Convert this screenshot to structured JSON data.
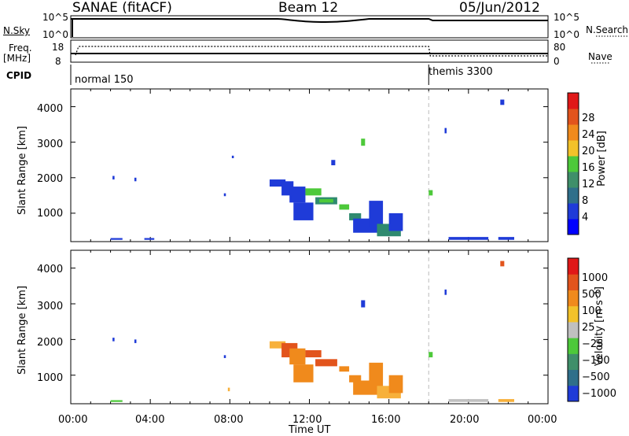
{
  "header": {
    "title": "SANAE (fitACF)",
    "beam": "Beam 12",
    "date": "05/Jun/2012"
  },
  "status_panel": {
    "left_labels": {
      "nsky": "N.Sky",
      "freq": "Freq.",
      "freq_unit": "[MHz]",
      "cpid": "CPID"
    },
    "right_labels": {
      "nsearch": "N.Search",
      "nave": "Nave"
    },
    "nsky_ticks": [
      "10^5",
      "10^0"
    ],
    "nsearch_ticks": [
      "10^5",
      "10^0"
    ],
    "freq_ticks": [
      "18",
      "8"
    ],
    "nave_ticks": [
      "80",
      "0"
    ],
    "cpid_segments": [
      {
        "label": "normal 150",
        "start_hour": 0.0
      },
      {
        "label": "themis 3300",
        "start_hour": 18.0
      }
    ]
  },
  "colors": {
    "blue": "#1f3bd8",
    "green": "#4dc93a",
    "teal": "#2f8a6f",
    "orange": "#f08a1c",
    "red_orange": "#e2541c",
    "light_orange": "#f7b03a",
    "gray": "#c0c0c0"
  },
  "chart_data": [
    {
      "type": "heatmap",
      "panel": "power",
      "ylabel": "Slant Range [km]",
      "yticks": [
        "1000",
        "2000",
        "3000",
        "4000"
      ],
      "ylim": [
        200,
        4500
      ],
      "xlim": [
        0,
        24
      ],
      "colorbar": {
        "label": "Power [dB]",
        "ticks": [
          "4",
          "8",
          "12",
          "16",
          "20",
          "24",
          "28"
        ],
        "colors": [
          "#0000ff",
          "#1f3bd8",
          "#2f6f8a",
          "#3f8f6a",
          "#4dc93a",
          "#f2c22a",
          "#f08a1c",
          "#e2541c",
          "#e01818"
        ]
      },
      "scatter_blocks": [
        {
          "t0": 2.1,
          "t1": 2.2,
          "r0": 1950,
          "r1": 2050,
          "c": "blue"
        },
        {
          "t0": 3.2,
          "t1": 3.3,
          "r0": 1900,
          "r1": 2000,
          "c": "blue"
        },
        {
          "t0": 7.7,
          "t1": 7.8,
          "r0": 1480,
          "r1": 1560,
          "c": "blue"
        },
        {
          "t0": 8.1,
          "t1": 8.2,
          "r0": 2550,
          "r1": 2620,
          "c": "blue"
        },
        {
          "t0": 10.0,
          "t1": 10.8,
          "r0": 1750,
          "r1": 1950,
          "c": "blue"
        },
        {
          "t0": 10.6,
          "t1": 11.2,
          "r0": 1500,
          "r1": 1900,
          "c": "blue"
        },
        {
          "t0": 11.0,
          "t1": 11.8,
          "r0": 1300,
          "r1": 1750,
          "c": "blue"
        },
        {
          "t0": 11.2,
          "t1": 12.2,
          "r0": 800,
          "r1": 1300,
          "c": "blue"
        },
        {
          "t0": 11.8,
          "t1": 12.6,
          "r0": 1500,
          "r1": 1700,
          "c": "green"
        },
        {
          "t0": 12.3,
          "t1": 13.4,
          "r0": 1250,
          "r1": 1450,
          "c": "teal"
        },
        {
          "t0": 12.5,
          "t1": 13.2,
          "r0": 1300,
          "r1": 1400,
          "c": "green"
        },
        {
          "t0": 13.1,
          "t1": 13.3,
          "r0": 2350,
          "r1": 2500,
          "c": "blue"
        },
        {
          "t0": 13.5,
          "t1": 14.0,
          "r0": 1100,
          "r1": 1250,
          "c": "green"
        },
        {
          "t0": 14.0,
          "t1": 14.6,
          "r0": 800,
          "r1": 1000,
          "c": "teal"
        },
        {
          "t0": 14.6,
          "t1": 14.8,
          "r0": 2900,
          "r1": 3100,
          "c": "green"
        },
        {
          "t0": 14.2,
          "t1": 15.4,
          "r0": 450,
          "r1": 850,
          "c": "blue"
        },
        {
          "t0": 15.0,
          "t1": 15.7,
          "r0": 600,
          "r1": 1350,
          "c": "blue"
        },
        {
          "t0": 15.4,
          "t1": 16.6,
          "r0": 350,
          "r1": 700,
          "c": "teal"
        },
        {
          "t0": 16.0,
          "t1": 16.7,
          "r0": 500,
          "r1": 1000,
          "c": "blue"
        },
        {
          "t0": 18.0,
          "t1": 18.2,
          "r0": 1500,
          "r1": 1650,
          "c": "green"
        },
        {
          "t0": 19.0,
          "t1": 21.0,
          "r0": 250,
          "r1": 330,
          "c": "blue"
        },
        {
          "t0": 21.5,
          "t1": 22.3,
          "r0": 250,
          "r1": 330,
          "c": "blue"
        },
        {
          "t0": 2.0,
          "t1": 2.6,
          "r0": 250,
          "r1": 300,
          "c": "blue"
        },
        {
          "t0": 3.7,
          "t1": 4.2,
          "r0": 250,
          "r1": 300,
          "c": "blue"
        },
        {
          "t0": 21.6,
          "t1": 21.8,
          "r0": 4050,
          "r1": 4200,
          "c": "blue"
        },
        {
          "t0": 18.8,
          "t1": 18.9,
          "r0": 3250,
          "r1": 3400,
          "c": "blue"
        }
      ]
    },
    {
      "type": "heatmap",
      "panel": "velocity",
      "ylabel": "Slant Range [km]",
      "yticks": [
        "1000",
        "2000",
        "3000",
        "4000"
      ],
      "ylim": [
        200,
        4500
      ],
      "xlim": [
        0,
        24
      ],
      "xticks": [
        "00:00",
        "04:00",
        "08:00",
        "12:00",
        "16:00",
        "20:00",
        "00:00"
      ],
      "xlabel": "Time UT",
      "colorbar": {
        "label": "Velocity [m s⁻¹]",
        "ticks": [
          "1000",
          "500",
          "100",
          "25",
          "−25",
          "−100",
          "−500",
          "−1000"
        ],
        "colors": [
          "#1f3bd8",
          "#2f6f8a",
          "#3f8f6a",
          "#4dc93a",
          "#c0c0c0",
          "#f2c22a",
          "#f08a1c",
          "#e2541c",
          "#e01818"
        ]
      },
      "scatter_blocks": [
        {
          "t0": 2.1,
          "t1": 2.2,
          "r0": 1950,
          "r1": 2050,
          "c": "blue"
        },
        {
          "t0": 3.2,
          "t1": 3.3,
          "r0": 1900,
          "r1": 2000,
          "c": "blue"
        },
        {
          "t0": 7.7,
          "t1": 7.8,
          "r0": 1480,
          "r1": 1560,
          "c": "blue"
        },
        {
          "t0": 10.0,
          "t1": 10.8,
          "r0": 1750,
          "r1": 1950,
          "c": "light_orange"
        },
        {
          "t0": 10.6,
          "t1": 11.4,
          "r0": 1500,
          "r1": 1900,
          "c": "red_orange"
        },
        {
          "t0": 11.0,
          "t1": 11.8,
          "r0": 1300,
          "r1": 1750,
          "c": "orange"
        },
        {
          "t0": 11.2,
          "t1": 12.2,
          "r0": 800,
          "r1": 1300,
          "c": "orange"
        },
        {
          "t0": 11.8,
          "t1": 12.6,
          "r0": 1500,
          "r1": 1700,
          "c": "red_orange"
        },
        {
          "t0": 12.3,
          "t1": 13.4,
          "r0": 1250,
          "r1": 1450,
          "c": "red_orange"
        },
        {
          "t0": 13.5,
          "t1": 14.0,
          "r0": 1100,
          "r1": 1250,
          "c": "orange"
        },
        {
          "t0": 14.0,
          "t1": 14.6,
          "r0": 800,
          "r1": 1000,
          "c": "orange"
        },
        {
          "t0": 14.6,
          "t1": 14.8,
          "r0": 2900,
          "r1": 3100,
          "c": "blue"
        },
        {
          "t0": 14.2,
          "t1": 15.4,
          "r0": 450,
          "r1": 850,
          "c": "orange"
        },
        {
          "t0": 15.0,
          "t1": 15.7,
          "r0": 600,
          "r1": 1350,
          "c": "orange"
        },
        {
          "t0": 15.4,
          "t1": 16.6,
          "r0": 350,
          "r1": 700,
          "c": "light_orange"
        },
        {
          "t0": 16.0,
          "t1": 16.7,
          "r0": 500,
          "r1": 1000,
          "c": "orange"
        },
        {
          "t0": 18.0,
          "t1": 18.2,
          "r0": 1500,
          "r1": 1650,
          "c": "green"
        },
        {
          "t0": 19.0,
          "t1": 21.0,
          "r0": 250,
          "r1": 330,
          "c": "gray"
        },
        {
          "t0": 21.5,
          "t1": 22.3,
          "r0": 250,
          "r1": 330,
          "c": "light_orange"
        },
        {
          "t0": 2.0,
          "t1": 2.6,
          "r0": 250,
          "r1": 300,
          "c": "green"
        },
        {
          "t0": 7.9,
          "t1": 8.0,
          "r0": 550,
          "r1": 650,
          "c": "light_orange"
        },
        {
          "t0": 21.6,
          "t1": 21.8,
          "r0": 4050,
          "r1": 4200,
          "c": "red_orange"
        },
        {
          "t0": 18.8,
          "t1": 18.9,
          "r0": 3250,
          "r1": 3400,
          "c": "blue"
        }
      ]
    }
  ]
}
